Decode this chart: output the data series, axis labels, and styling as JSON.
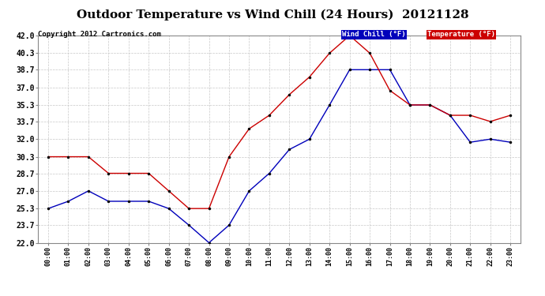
{
  "title": "Outdoor Temperature vs Wind Chill (24 Hours)  20121128",
  "copyright": "Copyright 2012 Cartronics.com",
  "legend_wind_chill": "Wind Chill (°F)",
  "legend_temperature": "Temperature (°F)",
  "hours": [
    0,
    1,
    2,
    3,
    4,
    5,
    6,
    7,
    8,
    9,
    10,
    11,
    12,
    13,
    14,
    15,
    16,
    17,
    18,
    19,
    20,
    21,
    22,
    23
  ],
  "wind_chill": [
    25.3,
    26.0,
    27.0,
    26.0,
    26.0,
    26.0,
    25.3,
    23.7,
    22.0,
    23.7,
    27.0,
    28.7,
    31.0,
    32.0,
    35.3,
    38.7,
    38.7,
    38.7,
    35.3,
    35.3,
    34.3,
    31.7,
    32.0,
    31.7
  ],
  "temperature": [
    30.3,
    30.3,
    30.3,
    28.7,
    28.7,
    28.7,
    27.0,
    25.3,
    25.3,
    30.3,
    33.0,
    34.3,
    36.3,
    38.0,
    40.3,
    42.0,
    40.3,
    36.7,
    35.3,
    35.3,
    34.3,
    34.3,
    33.7,
    34.3
  ],
  "ylim": [
    22.0,
    42.0
  ],
  "yticks": [
    22.0,
    23.7,
    25.3,
    27.0,
    28.7,
    30.3,
    32.0,
    33.7,
    35.3,
    37.0,
    38.7,
    40.3,
    42.0
  ],
  "bg_color": "#ffffff",
  "plot_bg_color": "#ffffff",
  "grid_color": "#c8c8c8",
  "wind_chill_color": "#0000bb",
  "temperature_color": "#cc0000",
  "title_fontsize": 11,
  "copyright_fontsize": 6.5,
  "legend_bg_wind": "#0000bb",
  "legend_bg_temp": "#cc0000",
  "legend_text_color": "#ffffff"
}
